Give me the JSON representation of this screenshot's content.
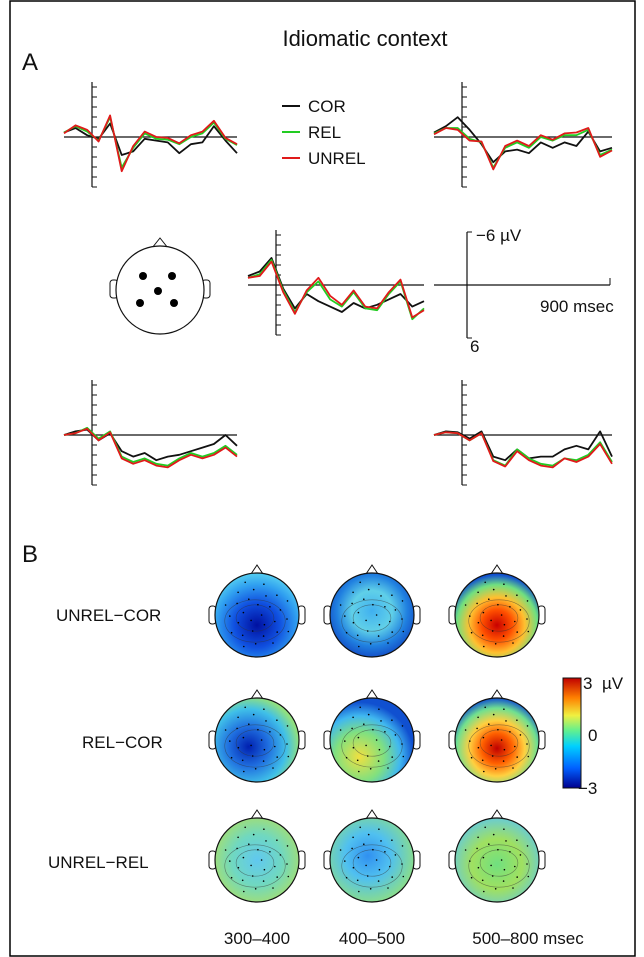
{
  "figure": {
    "title": "Idiomatic context",
    "panel_a_label": "A",
    "panel_b_label": "B"
  },
  "panel_a": {
    "legend": [
      {
        "label": "COR",
        "color": "#111111"
      },
      {
        "label": "REL",
        "color": "#22cc22"
      },
      {
        "label": "UNREL",
        "color": "#e01a1a"
      }
    ],
    "scale": {
      "top_label": "−6 µV",
      "bottom_label": "6",
      "time_label": "900 msec"
    },
    "head_icon": "scalp-electrode-map-icon"
  },
  "panel_b": {
    "rows": [
      "UNREL−COR",
      "REL−COR",
      "UNREL−REL"
    ],
    "columns": [
      "300–400",
      "400–500",
      "500–800 msec"
    ],
    "colorbar": {
      "max_label": "3",
      "unit": "µV",
      "mid_label": "0",
      "min_label": "−3",
      "colors": [
        "#00008f",
        "#0060ff",
        "#00d0ff",
        "#60f090",
        "#f0f040",
        "#ff8000",
        "#c00000"
      ]
    }
  },
  "chart_data": {
    "type": "line",
    "description_units": "ERP amplitude in µV, negative plotted up; x in msec (0–900)",
    "x": [
      0,
      60,
      120,
      180,
      240,
      300,
      360,
      420,
      480,
      540,
      600,
      660,
      720,
      780,
      840,
      900
    ],
    "electrodes": [
      {
        "name": "left-anterior",
        "series": [
          {
            "name": "COR",
            "values": [
              -0.5,
              -1.0,
              -0.2,
              0.2,
              -1.5,
              2.0,
              1.6,
              0.2,
              0.4,
              0.6,
              1.8,
              0.8,
              0.6,
              -1.2,
              0.4,
              1.8
            ]
          },
          {
            "name": "REL",
            "values": [
              -0.5,
              -1.2,
              -0.6,
              0.4,
              -2.2,
              3.4,
              1.2,
              -0.4,
              0.2,
              0.3,
              0.8,
              0.0,
              -0.4,
              -1.6,
              0.2,
              0.9
            ]
          },
          {
            "name": "UNREL",
            "values": [
              -0.4,
              -1.3,
              -0.8,
              0.5,
              -2.4,
              3.8,
              1.0,
              -0.6,
              0.0,
              0.1,
              0.7,
              -0.2,
              -0.6,
              -1.8,
              0.1,
              0.8
            ]
          }
        ]
      },
      {
        "name": "right-anterior",
        "series": [
          {
            "name": "COR",
            "values": [
              -0.5,
              -1.2,
              -2.2,
              -0.8,
              0.8,
              2.8,
              1.6,
              1.4,
              1.8,
              0.6,
              1.2,
              0.6,
              1.0,
              -0.6,
              1.6,
              1.2
            ]
          },
          {
            "name": "REL",
            "values": [
              -0.4,
              -1.0,
              -1.0,
              0.2,
              0.6,
              3.4,
              1.2,
              0.6,
              1.2,
              0.0,
              0.4,
              -0.2,
              -0.2,
              -0.8,
              2.0,
              1.4
            ]
          },
          {
            "name": "UNREL",
            "values": [
              -0.3,
              -1.0,
              -0.8,
              0.4,
              0.5,
              3.6,
              1.0,
              0.4,
              1.0,
              -0.2,
              0.3,
              -0.4,
              -0.5,
              -1.0,
              2.2,
              1.5
            ]
          }
        ]
      },
      {
        "name": "central",
        "series": [
          {
            "name": "COR",
            "values": [
              -1.0,
              -1.5,
              -3.0,
              0.4,
              2.6,
              1.0,
              1.8,
              2.4,
              3.0,
              2.0,
              2.6,
              2.2,
              1.6,
              1.0,
              2.4,
              1.8
            ]
          },
          {
            "name": "REL",
            "values": [
              -0.8,
              -1.2,
              -2.8,
              0.6,
              3.0,
              0.8,
              -0.4,
              1.6,
              2.4,
              0.8,
              2.6,
              2.8,
              1.0,
              -0.4,
              3.8,
              2.6
            ]
          },
          {
            "name": "UNREL",
            "values": [
              -0.8,
              -1.0,
              -2.6,
              0.8,
              3.2,
              0.6,
              -0.8,
              1.2,
              2.2,
              0.6,
              2.4,
              2.6,
              0.8,
              -0.6,
              3.6,
              2.8
            ]
          }
        ]
      },
      {
        "name": "left-posterior",
        "series": [
          {
            "name": "COR",
            "values": [
              0.0,
              -0.4,
              -0.6,
              0.6,
              -0.2,
              1.8,
              2.4,
              2.0,
              2.8,
              2.4,
              2.2,
              1.8,
              1.4,
              1.0,
              0.0,
              1.2
            ]
          },
          {
            "name": "REL",
            "values": [
              0.0,
              -0.2,
              -0.8,
              0.4,
              -0.4,
              2.4,
              3.0,
              2.6,
              3.2,
              3.4,
              2.6,
              2.0,
              2.4,
              2.0,
              1.2,
              2.2
            ]
          },
          {
            "name": "UNREL",
            "values": [
              0.0,
              -0.2,
              -0.7,
              0.6,
              -0.3,
              2.6,
              3.2,
              2.8,
              3.4,
              3.6,
              2.8,
              2.2,
              2.6,
              2.2,
              1.4,
              2.4
            ]
          }
        ]
      },
      {
        "name": "right-posterior",
        "series": [
          {
            "name": "COR",
            "values": [
              0.0,
              -0.4,
              -0.3,
              0.4,
              -0.4,
              2.4,
              2.8,
              1.6,
              2.6,
              2.4,
              2.4,
              1.6,
              1.2,
              1.6,
              -0.4,
              2.4
            ]
          },
          {
            "name": "REL",
            "values": [
              0.0,
              -0.3,
              -0.2,
              0.6,
              -0.2,
              2.8,
              3.4,
              1.6,
              2.6,
              3.2,
              3.4,
              2.6,
              2.8,
              2.2,
              0.8,
              3.0
            ]
          },
          {
            "name": "UNREL",
            "values": [
              0.0,
              -0.3,
              -0.2,
              0.6,
              -0.2,
              2.9,
              3.5,
              1.8,
              2.8,
              3.4,
              3.6,
              2.6,
              3.0,
              2.4,
              1.0,
              3.2
            ]
          }
        ]
      }
    ]
  }
}
